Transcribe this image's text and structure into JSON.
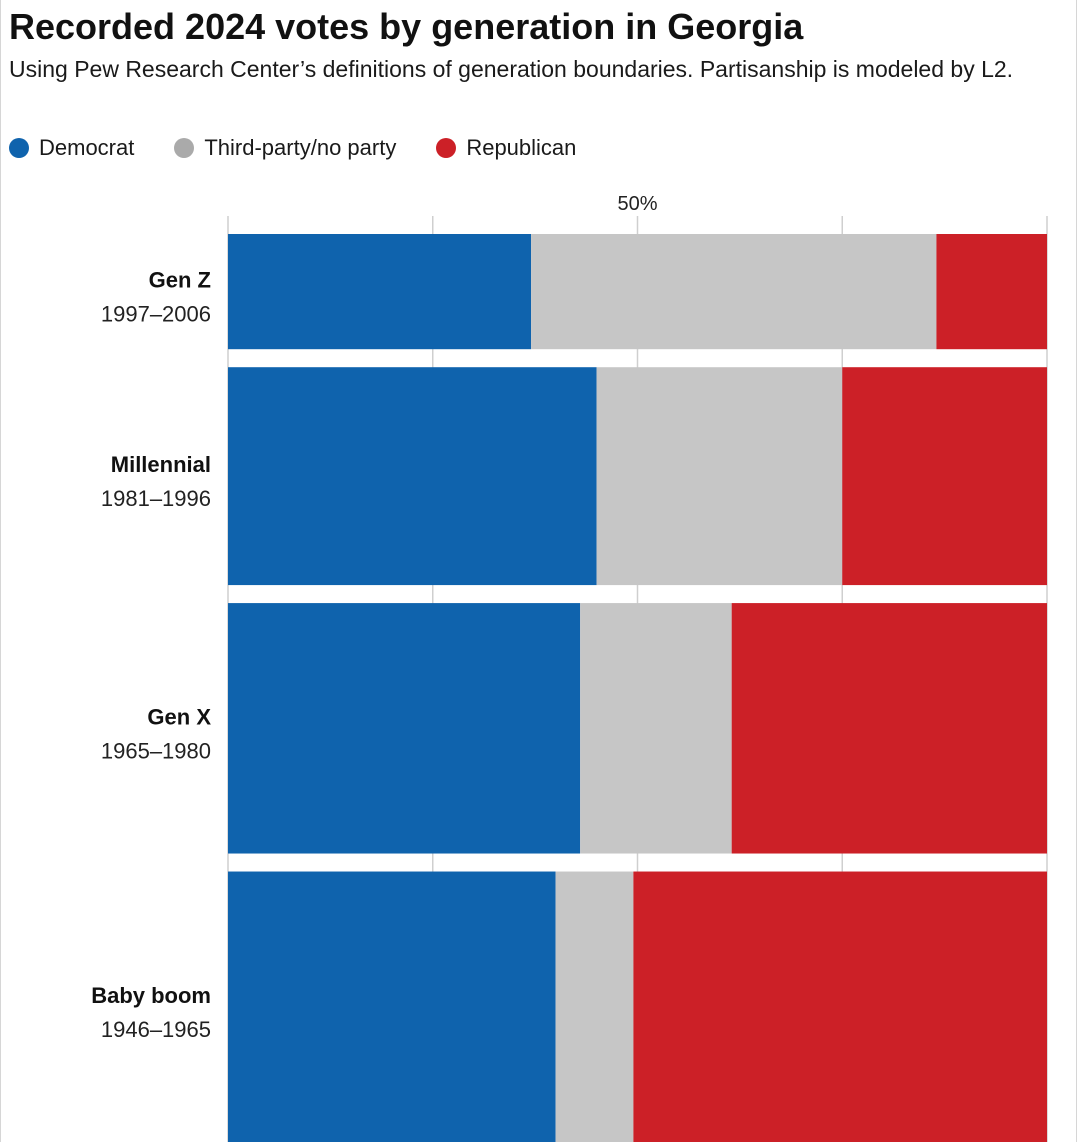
{
  "title": "Recorded 2024 votes by generation in Georgia",
  "subtitle": "Using Pew Research Center’s definitions of generation boundaries. Partisanship is modeled by L2.",
  "legend": [
    {
      "label": "Democrat",
      "color": "#0f63ad"
    },
    {
      "label": "Third-party/no party",
      "color": "#aaaaaa"
    },
    {
      "label": "Republican",
      "color": "#cc2027"
    }
  ],
  "chart_data": {
    "type": "bar",
    "stacked": true,
    "orientation": "horizontal",
    "variable_height": true,
    "title": "Recorded 2024 votes by generation in Georgia",
    "xlim": [
      0,
      100
    ],
    "x_ticks": [
      0,
      25,
      50,
      75,
      100
    ],
    "x_tick_labels": {
      "50": "50%"
    },
    "grid": true,
    "legend_position": "top-left",
    "categories": [
      {
        "name": "Gen Z",
        "years": "1997–2006",
        "relative_size": 0.46
      },
      {
        "name": "Millennial",
        "years": "1981–1996",
        "relative_size": 0.87
      },
      {
        "name": "Gen X",
        "years": "1965–1980",
        "relative_size": 1.0
      },
      {
        "name": "Baby boom",
        "years": "1946–1965",
        "relative_size": 1.08
      }
    ],
    "series": [
      {
        "name": "Democrat",
        "color": "#0f63ad",
        "values": [
          37,
          45,
          43,
          40
        ]
      },
      {
        "name": "Third-party/no party",
        "color": "#c6c6c6",
        "values": [
          49.5,
          30,
          18.5,
          9.5
        ]
      },
      {
        "name": "Republican",
        "color": "#cc2027",
        "values": [
          13.5,
          25,
          38.5,
          50.5
        ]
      }
    ]
  }
}
